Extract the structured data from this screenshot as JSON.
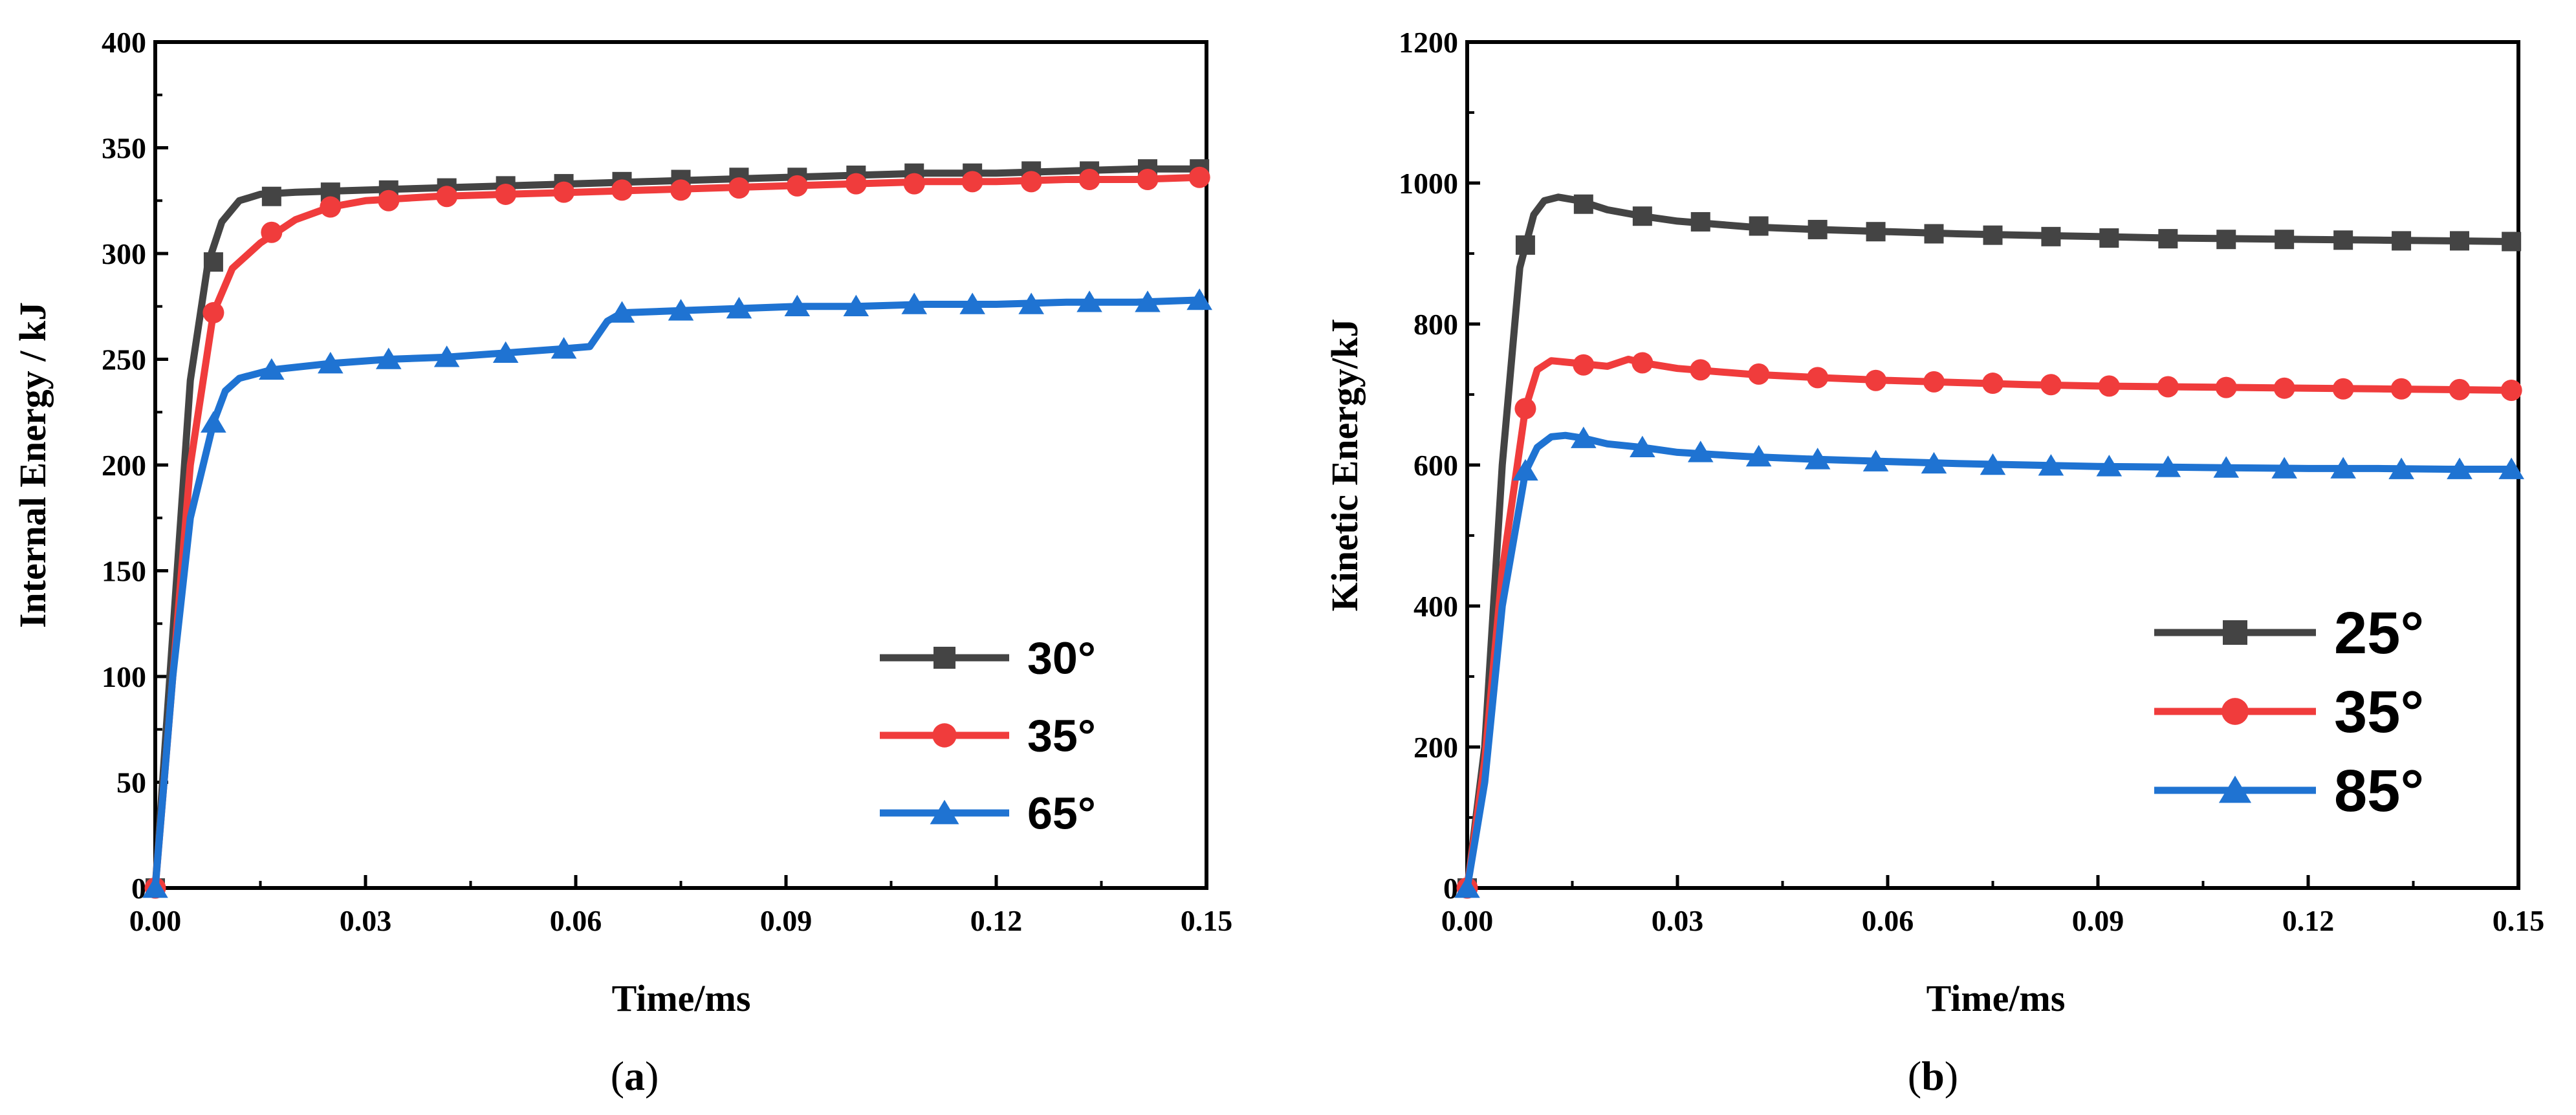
{
  "chart_data": [
    {
      "type": "line",
      "panel_label": "a",
      "xlabel": "Time/ms",
      "ylabel": "Internal Energy / kJ",
      "xlim": [
        0,
        0.15
      ],
      "ylim": [
        0,
        400
      ],
      "xticks": [
        0,
        0.03,
        0.06,
        0.09,
        0.12,
        0.15
      ],
      "xtick_labels": [
        "0.00",
        "0.03",
        "0.06",
        "0.09",
        "0.12",
        "0.15"
      ],
      "yticks": [
        0,
        50,
        100,
        150,
        200,
        250,
        300,
        350,
        400
      ],
      "ytick_labels": [
        "0",
        "50",
        "100",
        "150",
        "200",
        "250",
        "300",
        "350",
        "400"
      ],
      "legend_position": "bottom-right",
      "series": [
        {
          "name": "30°",
          "color": "#444444",
          "marker": "square",
          "x": [
            0,
            0.0025,
            0.005,
            0.0075,
            0.0095,
            0.012,
            0.015,
            0.02,
            0.03,
            0.04,
            0.05,
            0.06,
            0.07,
            0.08,
            0.09,
            0.1,
            0.11,
            0.12,
            0.13,
            0.14,
            0.149
          ],
          "y": [
            0,
            120,
            240,
            295,
            315,
            325,
            328,
            329,
            330,
            331,
            332,
            333,
            334,
            335,
            336,
            337,
            338,
            338,
            339,
            340,
            340
          ],
          "marker_x": [
            0,
            0.0083,
            0.0166,
            0.025,
            0.0333,
            0.0416,
            0.05,
            0.0583,
            0.0666,
            0.075,
            0.0833,
            0.0916,
            0.1,
            0.1083,
            0.1166,
            0.125,
            0.1333,
            0.1416,
            0.149
          ],
          "marker_y": [
            0,
            296,
            327,
            329,
            330,
            331,
            332,
            333,
            334,
            335,
            336,
            336,
            337,
            338,
            338,
            339,
            339,
            340,
            340
          ]
        },
        {
          "name": "35°",
          "color": "#f03c3c",
          "marker": "circle",
          "x": [
            0,
            0.0025,
            0.005,
            0.0083,
            0.011,
            0.015,
            0.02,
            0.025,
            0.03,
            0.04,
            0.05,
            0.06,
            0.07,
            0.08,
            0.09,
            0.1,
            0.11,
            0.12,
            0.13,
            0.14,
            0.149
          ],
          "y": [
            0,
            100,
            200,
            272,
            293,
            305,
            316,
            322,
            325,
            327,
            328,
            329,
            330,
            331,
            332,
            333,
            334,
            334,
            335,
            335,
            336
          ],
          "marker_x": [
            0,
            0.0083,
            0.0166,
            0.025,
            0.0333,
            0.0416,
            0.05,
            0.0583,
            0.0666,
            0.075,
            0.0833,
            0.0916,
            0.1,
            0.1083,
            0.1166,
            0.125,
            0.1333,
            0.1416,
            0.149
          ],
          "marker_y": [
            0,
            272,
            310,
            322,
            325,
            327,
            328,
            329,
            330,
            330,
            331,
            332,
            333,
            333,
            334,
            334,
            335,
            335,
            336
          ]
        },
        {
          "name": "65°",
          "color": "#1f73d2",
          "marker": "triangle",
          "x": [
            0,
            0.0025,
            0.005,
            0.0083,
            0.01,
            0.012,
            0.0166,
            0.025,
            0.0333,
            0.0416,
            0.05,
            0.0583,
            0.062,
            0.0645,
            0.0666,
            0.075,
            0.0833,
            0.0916,
            0.1,
            0.11,
            0.12,
            0.13,
            0.14,
            0.149
          ],
          "y": [
            0,
            100,
            175,
            220,
            235,
            241,
            245,
            248,
            250,
            251,
            253,
            255,
            256,
            268,
            272,
            273,
            274,
            275,
            275,
            276,
            276,
            277,
            277,
            278
          ],
          "marker_x": [
            0,
            0.0083,
            0.0166,
            0.025,
            0.0333,
            0.0416,
            0.05,
            0.0583,
            0.0666,
            0.075,
            0.0833,
            0.0916,
            0.1,
            0.1083,
            0.1166,
            0.125,
            0.1333,
            0.1416,
            0.149
          ],
          "marker_y": [
            0,
            220,
            245,
            248,
            250,
            251,
            253,
            255,
            272,
            273,
            274,
            275,
            275,
            276,
            276,
            276,
            277,
            277,
            278
          ]
        }
      ]
    },
    {
      "type": "line",
      "panel_label": "b",
      "xlabel": "Time/ms",
      "ylabel": "Kinetic Energy/kJ",
      "xlim": [
        0,
        0.15
      ],
      "ylim": [
        0,
        1200
      ],
      "xticks": [
        0,
        0.03,
        0.06,
        0.09,
        0.12,
        0.15
      ],
      "xtick_labels": [
        "0.00",
        "0.03",
        "0.06",
        "0.09",
        "0.12",
        "0.15"
      ],
      "yticks": [
        0,
        200,
        400,
        600,
        800,
        1000,
        1200
      ],
      "ytick_labels": [
        "0",
        "200",
        "400",
        "600",
        "800",
        "1000",
        "1200"
      ],
      "legend_position": "bottom-right",
      "series": [
        {
          "name": "25°",
          "color": "#444444",
          "marker": "square",
          "x": [
            0,
            0.0025,
            0.005,
            0.0075,
            0.0095,
            0.011,
            0.013,
            0.016,
            0.02,
            0.025,
            0.03,
            0.04,
            0.05,
            0.06,
            0.07,
            0.08,
            0.09,
            0.1,
            0.11,
            0.12,
            0.13,
            0.14,
            0.149
          ],
          "y": [
            0,
            200,
            600,
            880,
            955,
            975,
            980,
            975,
            962,
            953,
            946,
            938,
            934,
            931,
            928,
            926,
            924,
            922,
            921,
            920,
            919,
            918,
            917
          ],
          "marker_x": [
            0,
            0.0083,
            0.0166,
            0.025,
            0.0333,
            0.0416,
            0.05,
            0.0583,
            0.0666,
            0.075,
            0.0833,
            0.0916,
            0.1,
            0.1083,
            0.1166,
            0.125,
            0.1333,
            0.1416,
            0.149
          ],
          "marker_y": [
            0,
            912,
            970,
            953,
            945,
            939,
            934,
            931,
            928,
            926,
            924,
            922,
            921,
            920,
            920,
            919,
            918,
            918,
            917
          ]
        },
        {
          "name": "35°",
          "color": "#f03c3c",
          "marker": "circle",
          "x": [
            0,
            0.0025,
            0.005,
            0.0083,
            0.01,
            0.012,
            0.015,
            0.02,
            0.023,
            0.025,
            0.03,
            0.04,
            0.05,
            0.06,
            0.07,
            0.08,
            0.09,
            0.1,
            0.11,
            0.12,
            0.13,
            0.14,
            0.149
          ],
          "y": [
            0,
            180,
            450,
            680,
            735,
            748,
            745,
            740,
            750,
            745,
            737,
            729,
            724,
            720,
            717,
            714,
            712,
            711,
            710,
            709,
            708,
            707,
            706
          ],
          "marker_x": [
            0,
            0.0083,
            0.0166,
            0.025,
            0.0333,
            0.0416,
            0.05,
            0.0583,
            0.0666,
            0.075,
            0.0833,
            0.0916,
            0.1,
            0.1083,
            0.1166,
            0.125,
            0.1333,
            0.1416,
            0.149
          ],
          "marker_y": [
            0,
            680,
            742,
            745,
            735,
            729,
            724,
            720,
            718,
            716,
            714,
            712,
            711,
            710,
            709,
            708,
            708,
            707,
            706
          ]
        },
        {
          "name": "85°",
          "color": "#1f73d2",
          "marker": "triangle",
          "x": [
            0,
            0.0025,
            0.005,
            0.0083,
            0.01,
            0.012,
            0.014,
            0.0166,
            0.02,
            0.025,
            0.03,
            0.04,
            0.05,
            0.06,
            0.07,
            0.08,
            0.09,
            0.1,
            0.11,
            0.12,
            0.13,
            0.14,
            0.149
          ],
          "y": [
            0,
            150,
            400,
            590,
            625,
            640,
            642,
            638,
            630,
            625,
            618,
            612,
            608,
            605,
            602,
            600,
            598,
            597,
            596,
            595,
            595,
            594,
            594
          ],
          "marker_x": [
            0,
            0.0083,
            0.0166,
            0.025,
            0.0333,
            0.0416,
            0.05,
            0.0583,
            0.0666,
            0.075,
            0.0833,
            0.0916,
            0.1,
            0.1083,
            0.1166,
            0.125,
            0.1333,
            0.1416,
            0.149
          ],
          "marker_y": [
            0,
            592,
            638,
            625,
            618,
            612,
            608,
            605,
            602,
            600,
            599,
            598,
            597,
            596,
            595,
            595,
            594,
            594,
            594
          ]
        }
      ]
    }
  ]
}
